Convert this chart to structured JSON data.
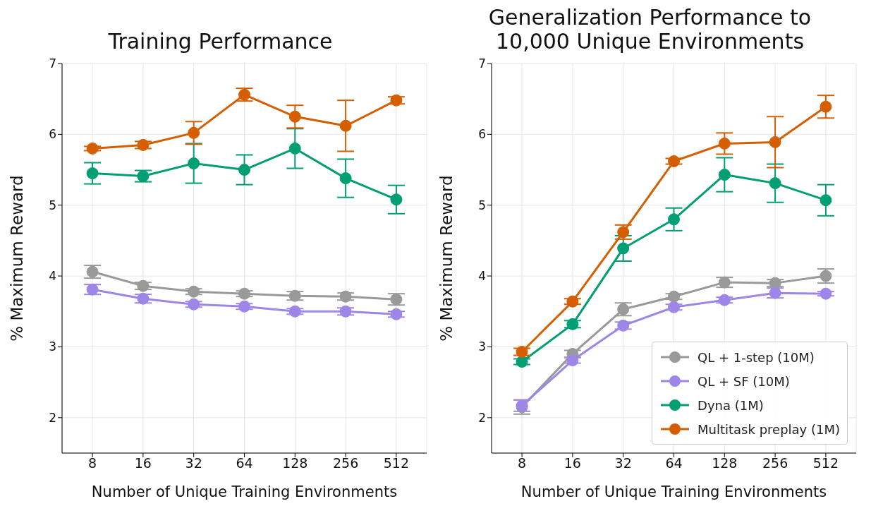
{
  "chart_data": [
    {
      "type": "line",
      "title": "Training Performance",
      "xlabel": "Number of Unique Training Environments",
      "ylabel": "% Maximum Reward",
      "categories": [
        "8",
        "16",
        "32",
        "64",
        "128",
        "256",
        "512"
      ],
      "ylim": [
        1.5,
        7
      ],
      "yticks": [
        2,
        3,
        4,
        5,
        6,
        7
      ],
      "grid": true,
      "legend": false,
      "marker": "circle",
      "series": [
        {
          "color": "#999999",
          "values": [
            4.06,
            3.86,
            3.78,
            3.75,
            3.72,
            3.71,
            3.67
          ],
          "errors": [
            0.09,
            0.05,
            0.04,
            0.04,
            0.06,
            0.05,
            0.08
          ]
        },
        {
          "color": "#9e86e8",
          "values": [
            3.81,
            3.68,
            3.6,
            3.57,
            3.5,
            3.5,
            3.46
          ],
          "errors": [
            0.07,
            0.06,
            0.04,
            0.04,
            0.04,
            0.05,
            0.04
          ]
        },
        {
          "color": "#009e73",
          "values": [
            5.45,
            5.41,
            5.59,
            5.5,
            5.8,
            5.38,
            5.08
          ],
          "errors": [
            0.15,
            0.08,
            0.28,
            0.21,
            0.28,
            0.27,
            0.2
          ]
        },
        {
          "color": "#d55e00",
          "values": [
            5.8,
            5.85,
            6.02,
            6.56,
            6.25,
            6.12,
            6.48
          ],
          "errors": [
            0.03,
            0.05,
            0.16,
            0.09,
            0.16,
            0.36,
            0.05
          ]
        }
      ]
    },
    {
      "type": "line",
      "title": "Generalization Performance to 10,000 Unique Environments",
      "xlabel": "Number of Unique Training Environments",
      "ylabel": "% Maximum Reward",
      "categories": [
        "8",
        "16",
        "32",
        "64",
        "128",
        "256",
        "512"
      ],
      "ylim": [
        1.5,
        7
      ],
      "yticks": [
        2,
        3,
        4,
        5,
        6,
        7
      ],
      "grid": true,
      "legend": "bottom right",
      "marker": "circle",
      "series": [
        {
          "name": "QL + 1-step (10M)",
          "color": "#999999",
          "values": [
            2.15,
            2.9,
            3.53,
            3.71,
            3.91,
            3.9,
            4.0
          ],
          "errors": [
            0.1,
            0.05,
            0.09,
            0.04,
            0.07,
            0.05,
            0.1
          ]
        },
        {
          "name": "QL + SF (10M)",
          "color": "#9e86e8",
          "values": [
            2.17,
            2.81,
            3.3,
            3.56,
            3.66,
            3.76,
            3.75
          ],
          "errors": [
            0.08,
            0.04,
            0.05,
            0.04,
            0.04,
            0.07,
            0.03
          ]
        },
        {
          "name": "Dyna (1M)",
          "color": "#009e73",
          "values": [
            2.79,
            3.32,
            4.39,
            4.8,
            5.43,
            5.31,
            5.07
          ],
          "errors": [
            0.04,
            0.05,
            0.18,
            0.16,
            0.24,
            0.27,
            0.22
          ]
        },
        {
          "name": "Multitask preplay (1M)",
          "color": "#d55e00",
          "values": [
            2.93,
            3.64,
            4.62,
            5.62,
            5.87,
            5.89,
            6.39
          ],
          "errors": [
            0.05,
            0.04,
            0.1,
            0.04,
            0.15,
            0.36,
            0.16
          ]
        }
      ]
    }
  ]
}
